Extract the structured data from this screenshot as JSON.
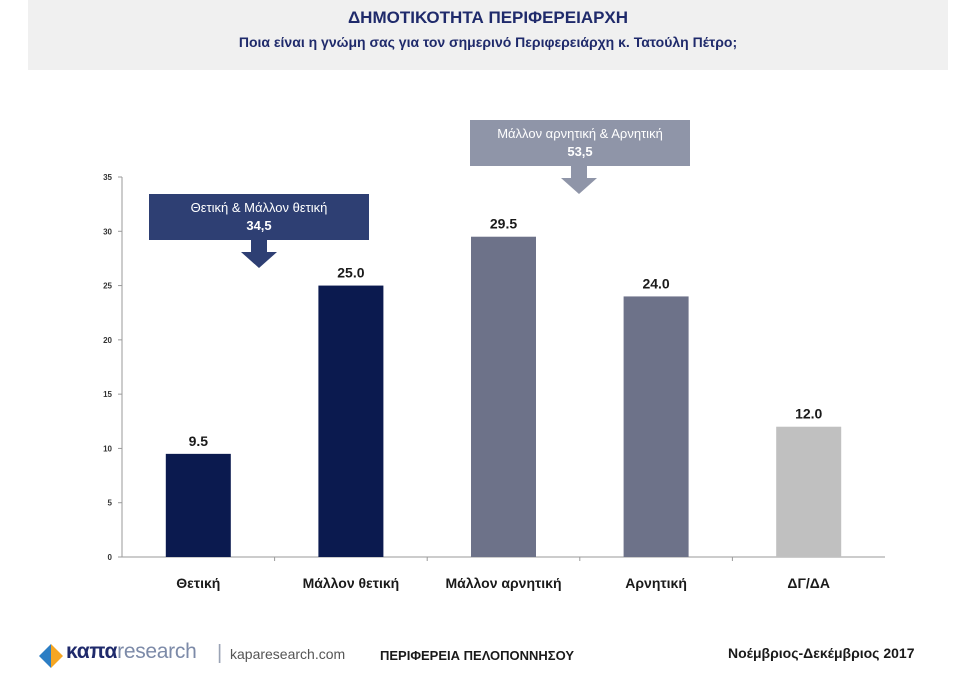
{
  "header": {
    "title": "ΔΗΜΟΤΙΚΟΤΗΤΑ ΠΕΡΙΦΕΡΕΙΑΡΧΗ",
    "subtitle": "Ποια είναι η γνώμη σας για τον σημερινό Περιφερειάρχη κ. Τατούλη Πέτρο;"
  },
  "chart_data": {
    "type": "bar",
    "categories": [
      "Θετική",
      "Μάλλον θετική",
      "Μάλλον αρνητική",
      "Αρνητική",
      "ΔΓ/ΔΑ"
    ],
    "values": [
      9.5,
      25.0,
      29.5,
      24.0,
      12.0
    ],
    "value_labels": [
      "9.5",
      "25.0",
      "29.5",
      "24.0",
      "12.0"
    ],
    "bar_colors": [
      "#0b1a4f",
      "#0b1a4f",
      "#6d7289",
      "#6d7289",
      "#c0c0c0"
    ],
    "ylim": [
      0,
      35
    ],
    "yticks": [
      0,
      5,
      10,
      15,
      20,
      25,
      30,
      35
    ],
    "grid": false,
    "title": "",
    "xlabel": "",
    "ylabel": ""
  },
  "callouts": {
    "positive": {
      "label": "Θετική & Μάλλον θετική",
      "value": "34,5",
      "color": "#2e3f73"
    },
    "negative": {
      "label": "Μάλλον αρνητική & Αρνητική",
      "value": "53,5",
      "color": "#8f95a8"
    }
  },
  "footer": {
    "brand_kapa": "καπα",
    "brand_research": "research",
    "separator": "|",
    "url": "kaparesearch.com",
    "region": "ΠΕΡΙΦΕΡΕΙΑ ΠΕΛΟΠΟΝΝΗΣΟΥ",
    "period": "Νοέμβριος-Δεκέμβριος 2017"
  }
}
